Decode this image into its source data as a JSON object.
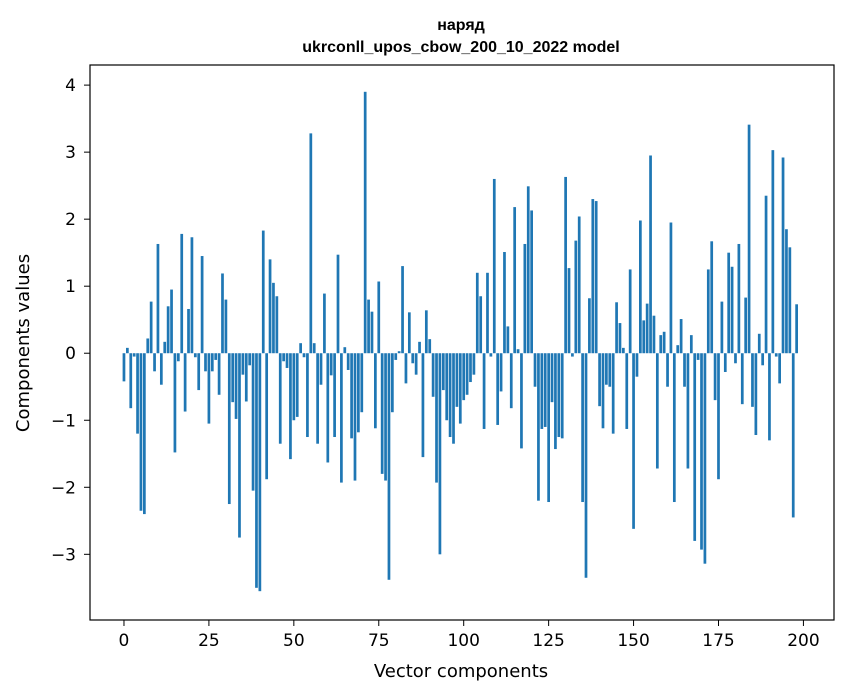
{
  "chart_data": {
    "type": "bar",
    "title_line1": "наряд",
    "title_line2": "ukrconll_upos_cbow_200_10_2022 model",
    "xlabel": "Vector components",
    "ylabel": "Components values",
    "xlim": [
      -10,
      209
    ],
    "ylim": [
      -3.98,
      4.3
    ],
    "xticks": [
      0,
      25,
      50,
      75,
      100,
      125,
      150,
      175,
      200
    ],
    "yticks": [
      -3,
      -2,
      -1,
      0,
      1,
      2,
      3,
      4
    ],
    "ytick_labels": [
      "−3",
      "−2",
      "−1",
      "0",
      "1",
      "2",
      "3",
      "4"
    ],
    "bar_color": "#1f77b4",
    "grid": false,
    "values": [
      -0.42,
      0.08,
      -0.82,
      -0.05,
      -1.2,
      -2.35,
      -2.4,
      0.22,
      0.77,
      -0.27,
      1.63,
      -0.47,
      0.17,
      0.7,
      0.95,
      -1.48,
      -0.12,
      1.78,
      -0.87,
      0.66,
      1.73,
      -0.06,
      -0.55,
      1.45,
      -0.27,
      -1.05,
      -0.27,
      -0.1,
      -0.62,
      1.19,
      0.8,
      -2.25,
      -0.73,
      -0.98,
      -2.75,
      -0.32,
      -0.72,
      -0.18,
      -2.05,
      -3.5,
      -3.55,
      1.83,
      -1.88,
      1.4,
      1.05,
      0.85,
      -1.35,
      -0.12,
      -0.22,
      -1.58,
      -1.0,
      -0.95,
      0.15,
      -0.06,
      -1.25,
      3.28,
      0.15,
      -1.35,
      -0.47,
      0.89,
      -1.63,
      -0.33,
      -1.25,
      1.47,
      -1.93,
      0.09,
      -0.25,
      -1.27,
      -1.9,
      -1.18,
      -0.88,
      3.9,
      0.8,
      0.62,
      -1.12,
      1.07,
      -1.8,
      -1.9,
      -3.38,
      -0.88,
      -0.1,
      0.03,
      1.3,
      -0.45,
      0.61,
      -0.15,
      -0.32,
      0.17,
      -1.55,
      0.64,
      0.21,
      -0.65,
      -1.93,
      -3.0,
      -0.55,
      -1.0,
      -1.25,
      -1.35,
      -0.8,
      -1.05,
      -0.7,
      -0.62,
      -0.43,
      -0.32,
      1.2,
      0.85,
      -1.13,
      1.2,
      -0.05,
      2.6,
      -1.07,
      -0.57,
      1.51,
      0.4,
      -0.82,
      2.18,
      0.06,
      -1.42,
      1.63,
      2.49,
      2.13,
      -0.5,
      -2.2,
      -1.13,
      -1.1,
      -2.22,
      -0.73,
      -1.43,
      -1.25,
      -1.27,
      2.63,
      1.27,
      -0.05,
      1.68,
      2.04,
      -2.22,
      -3.35,
      0.82,
      2.3,
      2.27,
      -0.79,
      -1.12,
      -0.47,
      -0.5,
      -1.2,
      0.76,
      0.45,
      0.08,
      -1.13,
      1.25,
      -2.62,
      -0.35,
      1.98,
      0.49,
      0.74,
      2.95,
      0.56,
      -1.72,
      0.27,
      0.32,
      -0.5,
      1.95,
      -2.22,
      0.12,
      0.51,
      -0.5,
      -1.72,
      0.27,
      -2.8,
      -0.1,
      -2.93,
      -3.14,
      1.25,
      1.67,
      -0.7,
      -1.88,
      0.77,
      -0.28,
      1.5,
      1.29,
      -0.15,
      1.63,
      -0.76,
      0.83,
      3.41,
      -0.8,
      -1.22,
      0.29,
      -0.18,
      2.35,
      -1.3,
      3.03,
      -0.05,
      -0.45,
      2.92,
      1.85,
      1.58,
      -2.45,
      0.73
    ]
  }
}
